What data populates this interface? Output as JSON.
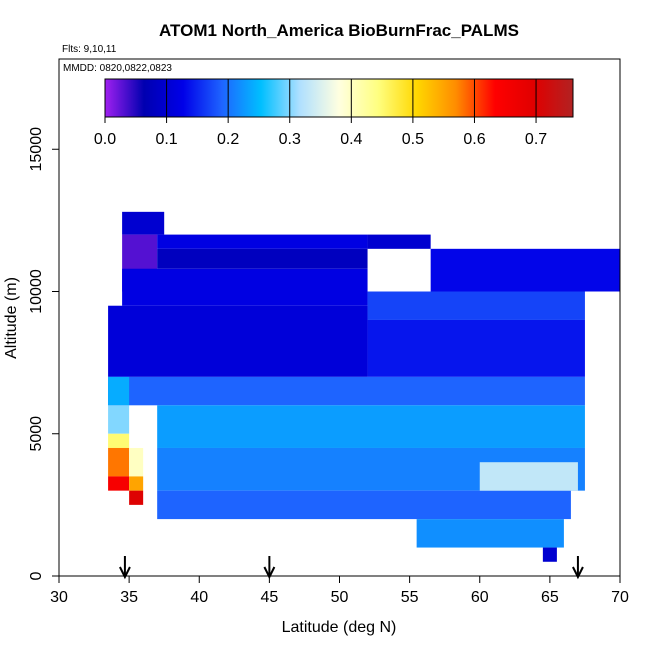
{
  "chart_data": {
    "type": "heatmap",
    "title": "ATOM1 North_America BioBurnFrac_PALMS",
    "annotations": [
      "Flts: 9,10,11",
      "MMDD: 0820,0822,0823"
    ],
    "xlabel": "Latitude (deg N)",
    "ylabel": "Altitude (m)",
    "xlim": [
      30,
      70
    ],
    "ylim": [
      0,
      17500
    ],
    "xticks": [
      "30",
      "35",
      "40",
      "45",
      "50",
      "55",
      "60",
      "65",
      "70"
    ],
    "yticks": [
      "0",
      "5000",
      "10000",
      "15000"
    ],
    "colorbar": {
      "ticks": [
        "0.0",
        "0.1",
        "0.2",
        "0.3",
        "0.4",
        "0.5",
        "0.6",
        "0.7"
      ],
      "range": [
        0,
        0.76
      ],
      "colors": [
        "#a020f0",
        "#0000b0",
        "#0000e8",
        "#1e64ff",
        "#00bfff",
        "#b0e0ff",
        "#ffffe0",
        "#ffff80",
        "#ffd700",
        "#ff8c00",
        "#ff0000",
        "#e00000",
        "#b22222"
      ]
    },
    "arrow_latitudes": [
      34.7,
      45,
      67
    ],
    "regions": [
      {
        "lat": [
          34.5,
          37.5
        ],
        "alt": [
          12000,
          12800
        ],
        "value": 0.1
      },
      {
        "lat": [
          34.5,
          37.0
        ],
        "alt": [
          10000,
          12000
        ],
        "value": 0.03
      },
      {
        "lat": [
          37.0,
          52.0
        ],
        "alt": [
          11500,
          12000
        ],
        "value": 0.12
      },
      {
        "lat": [
          37.0,
          52.0
        ],
        "alt": [
          10800,
          11500
        ],
        "value": 0.08
      },
      {
        "lat": [
          52.0,
          56.5
        ],
        "alt": [
          11500,
          12000
        ],
        "value": 0.1
      },
      {
        "lat": [
          56.5,
          70.0
        ],
        "alt": [
          10000,
          11500
        ],
        "value": 0.13
      },
      {
        "lat": [
          34.5,
          52.0
        ],
        "alt": [
          9500,
          10800
        ],
        "value": 0.12
      },
      {
        "lat": [
          52.0,
          67.5
        ],
        "alt": [
          9000,
          10000
        ],
        "value": 0.17
      },
      {
        "lat": [
          33.5,
          52.0
        ],
        "alt": [
          7000,
          9500
        ],
        "value": 0.11
      },
      {
        "lat": [
          52.0,
          67.5
        ],
        "alt": [
          7000,
          9000
        ],
        "value": 0.14
      },
      {
        "lat": [
          33.5,
          67.5
        ],
        "alt": [
          6000,
          7000
        ],
        "value": 0.19
      },
      {
        "lat": [
          37.0,
          67.5
        ],
        "alt": [
          4500,
          6000
        ],
        "value": 0.23
      },
      {
        "lat": [
          37.0,
          67.5
        ],
        "alt": [
          3000,
          4500
        ],
        "value": 0.21
      },
      {
        "lat": [
          37.0,
          66.5
        ],
        "alt": [
          2000,
          3000
        ],
        "value": 0.19
      },
      {
        "lat": [
          55.5,
          66.0
        ],
        "alt": [
          1000,
          2000
        ],
        "value": 0.22
      },
      {
        "lat": [
          64.5,
          65.5
        ],
        "alt": [
          500,
          1000
        ],
        "value": 0.1
      },
      {
        "lat": [
          33.5,
          35.0
        ],
        "alt": [
          6000,
          7000
        ],
        "value": 0.24
      },
      {
        "lat": [
          33.5,
          35.0
        ],
        "alt": [
          5000,
          6000
        ],
        "value": 0.3
      },
      {
        "lat": [
          33.5,
          35.0
        ],
        "alt": [
          4500,
          5000
        ],
        "value": 0.45
      },
      {
        "lat": [
          33.5,
          35.0
        ],
        "alt": [
          3500,
          4500
        ],
        "value": 0.58
      },
      {
        "lat": [
          33.5,
          35.0
        ],
        "alt": [
          3000,
          3500
        ],
        "value": 0.65
      },
      {
        "lat": [
          35.0,
          36.0
        ],
        "alt": [
          3500,
          4500
        ],
        "value": 0.4
      },
      {
        "lat": [
          35.0,
          36.0
        ],
        "alt": [
          3000,
          3500
        ],
        "value": 0.55
      },
      {
        "lat": [
          35.0,
          36.0
        ],
        "alt": [
          2500,
          3000
        ],
        "value": 0.7
      },
      {
        "lat": [
          60.0,
          67.0
        ],
        "alt": [
          3000,
          4000
        ],
        "value": 0.33
      }
    ]
  }
}
